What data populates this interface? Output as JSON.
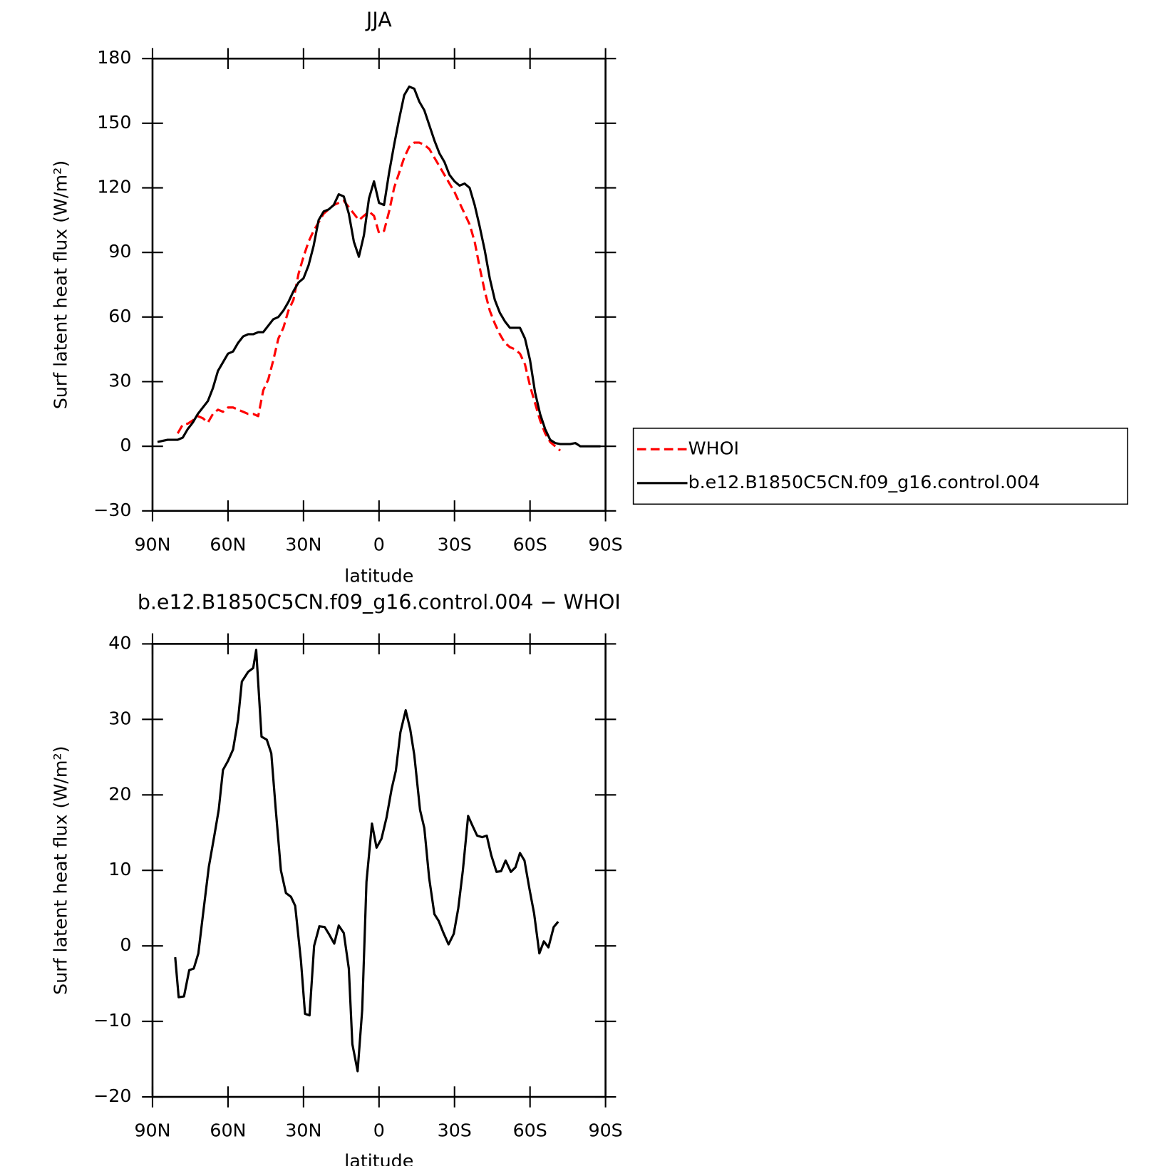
{
  "chart_data": [
    {
      "type": "line",
      "title": "JJA",
      "xlabel": "latitude",
      "ylabel": "Surf latent heat flux (W/m²)",
      "x": [
        88,
        86,
        84,
        82,
        80,
        78,
        76,
        74,
        72,
        70,
        68,
        66,
        64,
        62,
        60,
        58,
        56,
        54,
        52,
        50,
        48,
        46,
        44,
        42,
        40,
        38,
        36,
        34,
        32,
        30,
        28,
        26,
        24,
        22,
        20,
        18,
        16,
        14,
        12,
        10,
        8,
        6,
        4,
        2,
        0,
        -2,
        -4,
        -6,
        -8,
        -10,
        -12,
        -14,
        -16,
        -18,
        -20,
        -22,
        -24,
        -26,
        -28,
        -30,
        -32,
        -34,
        -36,
        -38,
        -40,
        -42,
        -44,
        -46,
        -48,
        -50,
        -52,
        -54,
        -56,
        -58,
        -60,
        -62,
        -64,
        -66,
        -68,
        -70,
        -72,
        -74,
        -76,
        -78,
        -80,
        -82,
        -84,
        -86,
        -88
      ],
      "series": [
        {
          "name": "WHOI",
          "color": "#ff0000",
          "style": "dashed",
          "values": [
            null,
            null,
            null,
            null,
            6,
            10,
            10.5,
            12,
            14,
            13,
            11,
            15,
            17,
            16,
            18,
            18,
            17,
            16,
            15,
            15,
            14,
            26,
            31,
            40,
            50,
            55,
            63,
            68,
            80,
            88,
            95,
            100,
            104,
            108,
            110,
            112,
            113,
            114,
            111,
            108,
            105,
            107,
            109,
            107,
            99,
            100,
            109,
            120,
            127,
            134,
            139,
            141,
            141,
            140,
            138,
            134,
            130,
            126,
            122,
            118,
            113,
            108,
            103,
            95,
            83,
            72,
            63,
            57,
            52,
            48,
            46,
            45,
            43,
            38,
            28,
            20,
            12,
            6,
            2,
            0,
            -2,
            null,
            null,
            null,
            null,
            null,
            null,
            null,
            null
          ]
        },
        {
          "name": "b.e12.B1850C5CN.f09_g16.control.004",
          "color": "#000000",
          "style": "solid",
          "values": [
            2,
            2.5,
            3,
            3,
            3,
            4,
            8,
            11,
            15,
            18,
            21,
            27,
            35,
            39,
            43,
            44,
            48,
            51,
            52,
            52,
            53,
            53,
            56,
            59,
            60,
            63,
            67,
            72,
            76,
            78,
            84,
            93,
            105,
            109,
            110,
            112,
            117,
            116,
            108,
            95,
            88,
            98,
            115,
            123,
            113,
            112,
            127,
            140,
            152,
            163,
            167,
            166,
            160,
            156,
            149,
            142,
            136,
            132,
            126,
            123,
            121,
            122,
            120,
            112,
            102,
            91,
            78,
            68,
            62,
            58,
            55,
            55,
            55,
            50,
            40,
            25,
            15,
            8,
            3,
            1.5,
            1,
            1,
            1,
            1.5,
            0,
            0,
            0,
            0,
            0
          ]
        }
      ],
      "xlim": [
        90,
        -90
      ],
      "xticks": [
        {
          "value": 90,
          "label": "90N"
        },
        {
          "value": 60,
          "label": "60N"
        },
        {
          "value": 30,
          "label": "30N"
        },
        0,
        {
          "value": -30,
          "label": "30S"
        },
        {
          "value": -60,
          "label": "60S"
        },
        {
          "value": -90,
          "label": "90S"
        }
      ],
      "ylim": [
        -30,
        180
      ],
      "yticks": [
        {
          "value": -30,
          "label": "−30"
        },
        0,
        30,
        60,
        90,
        120,
        150,
        180
      ],
      "legend": "right"
    },
    {
      "type": "line",
      "title": "b.e12.B1850C5CN.f09_g16.control.004 − WHOI",
      "xlabel": "latitude",
      "ylabel": "Surf latent heat flux (W/m²)",
      "x": [
        81,
        79.6,
        77.5,
        75.4,
        73.6,
        71.8,
        70,
        67.6,
        65.5,
        63.7,
        62,
        60,
        58,
        56,
        54.5,
        52,
        50,
        48.8,
        46.7,
        44.6,
        42.8,
        41,
        39,
        37,
        35,
        33.3,
        31,
        29.4,
        27.6,
        25.8,
        23.7,
        21.6,
        19.8,
        17.8,
        16,
        14,
        12,
        10.6,
        8.5,
        6.7,
        5,
        2.8,
        1,
        -1,
        -3,
        -5,
        -6.7,
        -8.5,
        -10.6,
        -12.4,
        -14,
        -16.3,
        -18,
        -19.9,
        -22,
        -23.7,
        -25.5,
        -27.6,
        -29.7,
        -31.5,
        -33.3,
        -35.4,
        -37,
        -39,
        -41,
        -42.8,
        -44.6,
        -46.7,
        -48.5,
        -50.3,
        -52.4,
        -54.2,
        -56,
        -57.8,
        -59.8,
        -61.6,
        -63.7,
        -65.5,
        -67.3,
        -69.4,
        -71.2
      ],
      "series": [
        {
          "color": "#000000",
          "style": "solid",
          "values": [
            -1.5,
            -6.8,
            -6.7,
            -3.2,
            -3,
            -1,
            4,
            10.5,
            14.5,
            18,
            23.3,
            24.5,
            26,
            30,
            35,
            36.3,
            36.8,
            39.2,
            27.7,
            27.3,
            25.5,
            18,
            10,
            7,
            6.5,
            5.3,
            -2,
            -9,
            -9.2,
            0,
            2.6,
            2.5,
            1.5,
            0.3,
            2.7,
            1.7,
            -3,
            -13,
            -16.6,
            -8.5,
            8.5,
            16.2,
            13,
            14.2,
            17,
            20.8,
            23.2,
            28.3,
            31.2,
            28.7,
            25.3,
            18,
            15.6,
            9,
            4.2,
            3.3,
            1.8,
            0.2,
            1.6,
            5,
            10,
            17.2,
            16,
            14.6,
            14.4,
            14.6,
            12,
            9.8,
            9.9,
            11.3,
            9.8,
            10.4,
            12.3,
            11.3,
            7.5,
            4.3,
            -1,
            0.6,
            -0.2,
            2.5,
            3.2
          ]
        }
      ],
      "xlim": [
        90,
        -90
      ],
      "xticks": [
        {
          "value": 90,
          "label": "90N"
        },
        {
          "value": 60,
          "label": "60N"
        },
        {
          "value": 30,
          "label": "30N"
        },
        0,
        {
          "value": -30,
          "label": "30S"
        },
        {
          "value": -60,
          "label": "60S"
        },
        {
          "value": -90,
          "label": "90S"
        }
      ],
      "ylim": [
        -20,
        40
      ],
      "yticks": [
        {
          "value": -20,
          "label": "−20"
        },
        {
          "value": -10,
          "label": "−10"
        },
        0,
        10,
        20,
        30,
        40
      ]
    }
  ]
}
